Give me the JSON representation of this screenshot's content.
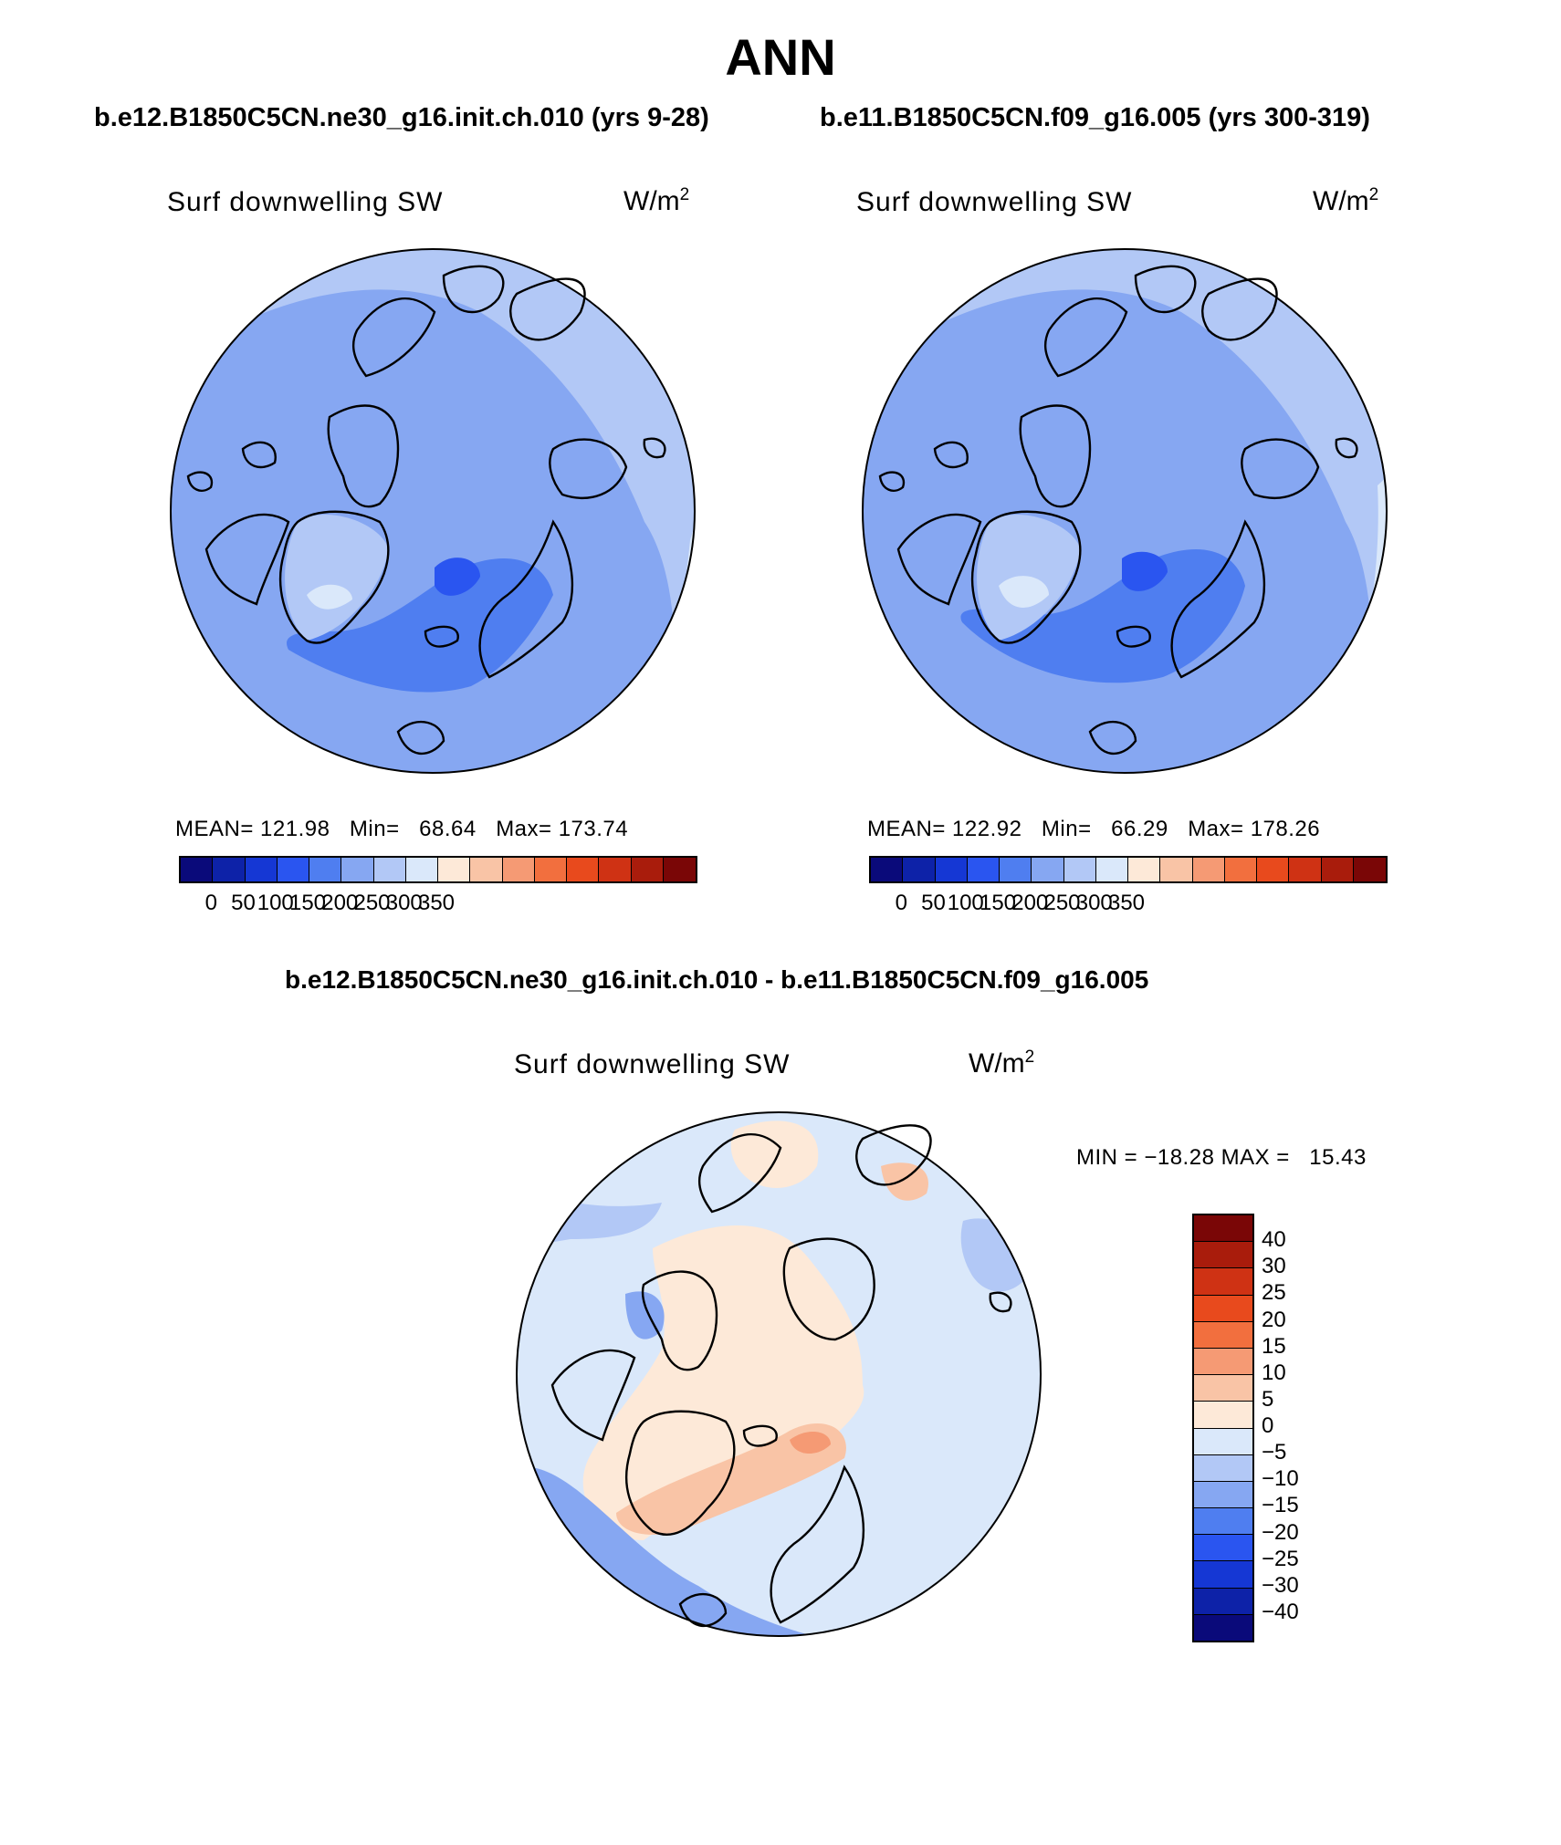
{
  "figure": {
    "title": "ANN",
    "season": "ANN"
  },
  "panels": [
    {
      "id": "test",
      "case_title": "b.e12.B1850C5CN.ne30_g16.init.ch.010 (yrs 9-28)",
      "variable": "Surf downwelling SW",
      "units_base": "W/m",
      "units_exp": "2",
      "stats": "MEAN= 121.98   Min=   68.64   Max= 173.74",
      "mean": 121.98,
      "min": 68.64,
      "max": 173.74
    },
    {
      "id": "control",
      "case_title": "b.e11.B1850C5CN.f09_g16.005 (yrs 300-319)",
      "variable": "Surf downwelling SW",
      "units_base": "W/m",
      "units_exp": "2",
      "stats": "MEAN= 122.92   Min=   66.29   Max= 178.26",
      "mean": 122.92,
      "min": 66.29,
      "max": 178.26
    }
  ],
  "difference": {
    "title": "b.e12.B1850C5CN.ne30_g16.init.ch.010 - b.e11.B1850C5CN.f09_g16.005",
    "variable": "Surf downwelling SW",
    "units_base": "W/m",
    "units_exp": "2",
    "stats": "MIN = −18.28 MAX =   15.43",
    "min": -18.28,
    "max": 15.43
  },
  "colorbar_abs": {
    "labels": [
      "0",
      "50",
      "100",
      "150",
      "200",
      "250",
      "300",
      "350"
    ],
    "colors": [
      "#0a0a7a",
      "#0d22a8",
      "#1537d4",
      "#2a55f0",
      "#4f7ef0",
      "#86a7f2",
      "#b2c8f6",
      "#dae8fa",
      "#fde9d8",
      "#f9c4a6",
      "#f59a74",
      "#f26f3e",
      "#e84a1d",
      "#cf3214",
      "#a91c0c",
      "#7a0606"
    ]
  },
  "colorbar_diff": {
    "labels": [
      "40",
      "30",
      "25",
      "20",
      "15",
      "10",
      "5",
      "0",
      "−5",
      "−10",
      "−15",
      "−20",
      "−25",
      "−30",
      "−40"
    ],
    "colors": [
      "#7a0606",
      "#a91c0c",
      "#cf3214",
      "#e84a1d",
      "#f26f3e",
      "#f59a74",
      "#f9c4a6",
      "#fde9d8",
      "#dae8fa",
      "#b2c8f6",
      "#86a7f2",
      "#4f7ef0",
      "#2a55f0",
      "#1537d4",
      "#0d22a8",
      "#0a0a7a"
    ]
  },
  "map_fields": {
    "test": {
      "base": "#b2c8f6",
      "inner": "#86a7f2",
      "core": "#4f7ef0",
      "min_core": "#2a55f0",
      "ice": "#dae8fa"
    },
    "control": {
      "base": "#b2c8f6",
      "inner": "#86a7f2",
      "core": "#4f7ef0",
      "min_core": "#2a55f0",
      "ice": "#dae8fa"
    },
    "difference": {
      "base": "#dae8fa",
      "pos": "#fde9d8",
      "pos2": "#f9c4a6",
      "neg": "#b2c8f6",
      "neg2": "#86a7f2"
    }
  }
}
